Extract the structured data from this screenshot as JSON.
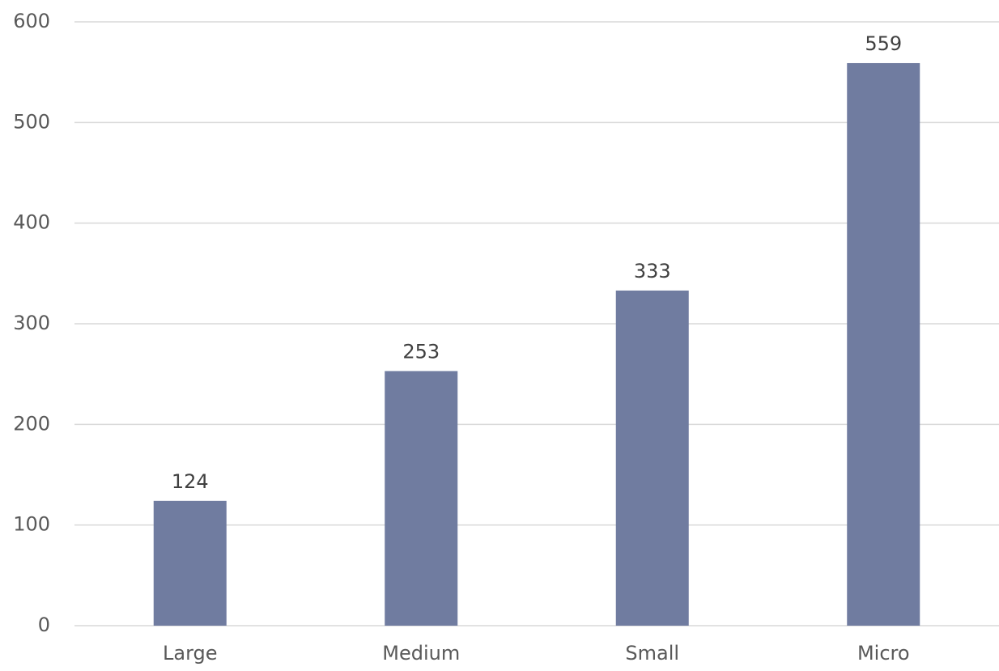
{
  "chart_data": {
    "type": "bar",
    "categories": [
      "Large",
      "Medium",
      "Small",
      "Micro"
    ],
    "values": [
      124,
      253,
      333,
      559
    ],
    "data_labels": [
      "124",
      "253",
      "333",
      "559"
    ],
    "title": "",
    "xlabel": "",
    "ylabel": "",
    "ylim": [
      0,
      600
    ],
    "yticks": [
      0,
      100,
      200,
      300,
      400,
      500,
      600
    ],
    "ytick_labels": [
      "0",
      "100",
      "200",
      "300",
      "400",
      "500",
      "600"
    ],
    "grid": true,
    "legend": "none",
    "bar_color": "#707ca0"
  }
}
